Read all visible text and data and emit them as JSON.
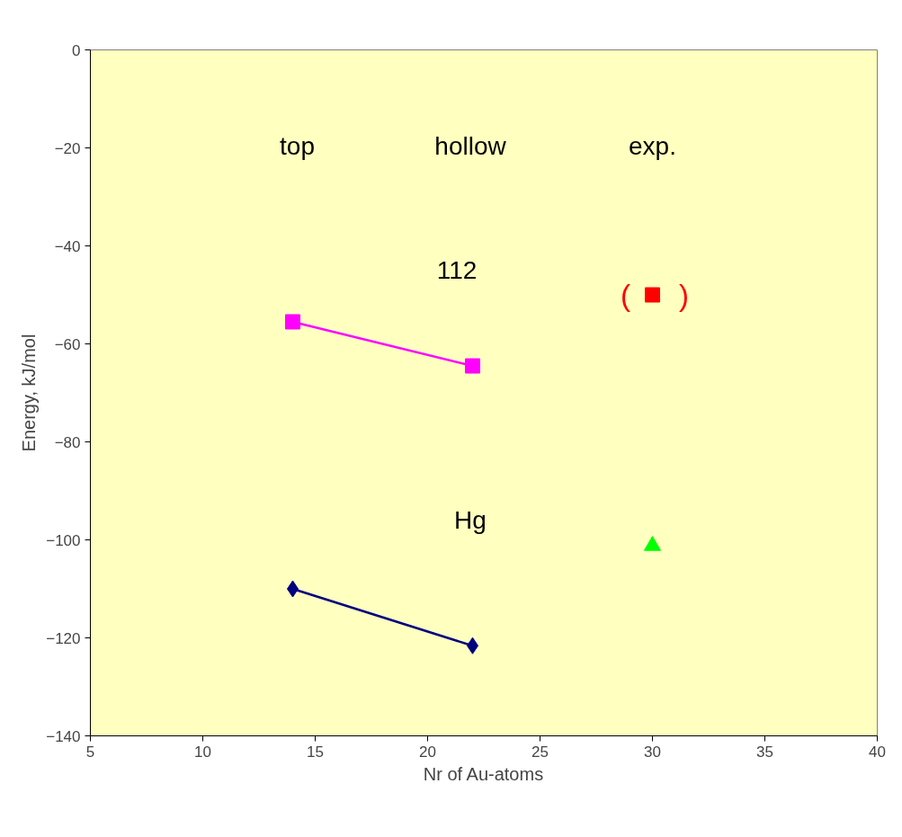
{
  "chart_data": {
    "type": "line",
    "xlabel": "Nr of Au-atoms",
    "ylabel": "Energy, kJ/mol",
    "xlim": [
      5,
      40
    ],
    "ylim": [
      -140,
      0
    ],
    "xticks": [
      5,
      10,
      15,
      20,
      25,
      30,
      35,
      40
    ],
    "yticks": [
      -140,
      -120,
      -100,
      -80,
      -60,
      -40,
      -20,
      0
    ],
    "grid": false,
    "series": [
      {
        "color": "#ff00ff",
        "marker": "square",
        "x": [
          14,
          22
        ],
        "values": [
          -55.5,
          -64.5
        ]
      },
      {
        "color": "#000080",
        "marker": "diamond",
        "x": [
          14,
          22
        ],
        "values": [
          -110,
          -121.6
        ]
      },
      {
        "type": "scatter",
        "color": "#ff0000",
        "marker": "square",
        "x": [
          30
        ],
        "values": [
          -50
        ]
      },
      {
        "type": "scatter",
        "color": "#00ff00",
        "marker": "triangle",
        "x": [
          30
        ],
        "values": [
          -101.2
        ]
      }
    ],
    "annotations": [
      "top",
      "hollow",
      "exp.",
      "112",
      "Hg",
      "(",
      ")"
    ]
  }
}
